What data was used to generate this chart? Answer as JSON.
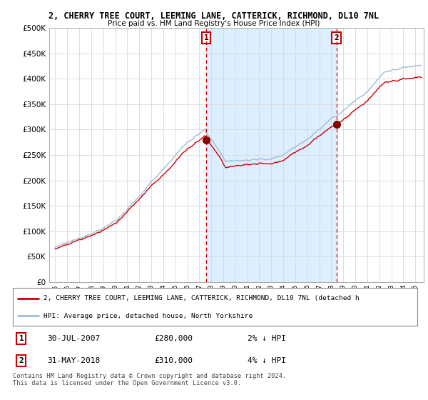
{
  "title_line1": "2, CHERRY TREE COURT, LEEMING LANE, CATTERICK, RICHMOND, DL10 7NL",
  "title_line2": "Price paid vs. HM Land Registry's House Price Index (HPI)",
  "legend_line1": "2, CHERRY TREE COURT, LEEMING LANE, CATTERICK, RICHMOND, DL10 7NL (detached h",
  "legend_line2": "HPI: Average price, detached house, North Yorkshire",
  "annotation1_date": "30-JUL-2007",
  "annotation1_price": "£280,000",
  "annotation1_hpi": "2% ↓ HPI",
  "annotation2_date": "31-MAY-2018",
  "annotation2_price": "£310,000",
  "annotation2_hpi": "4% ↓ HPI",
  "footer": "Contains HM Land Registry data © Crown copyright and database right 2024.\nThis data is licensed under the Open Government Licence v3.0.",
  "ylim_min": 0,
  "ylim_max": 500000,
  "yticks": [
    0,
    50000,
    100000,
    150000,
    200000,
    250000,
    300000,
    350000,
    400000,
    450000,
    500000
  ],
  "plot_bg": "#ffffff",
  "grid_color": "#d8d8d8",
  "line_hpi_color": "#a0bcd8",
  "line_price_color": "#cc0000",
  "dot_color": "#880000",
  "dashed_color": "#cc0000",
  "highlight_color": "#ddeeff",
  "anno_box_edgecolor": "#cc0000",
  "sale1_x": 2007.57,
  "sale1_y": 280000,
  "sale2_x": 2018.42,
  "sale2_y": 310000,
  "xmin": 1994.5,
  "xmax": 2025.7
}
